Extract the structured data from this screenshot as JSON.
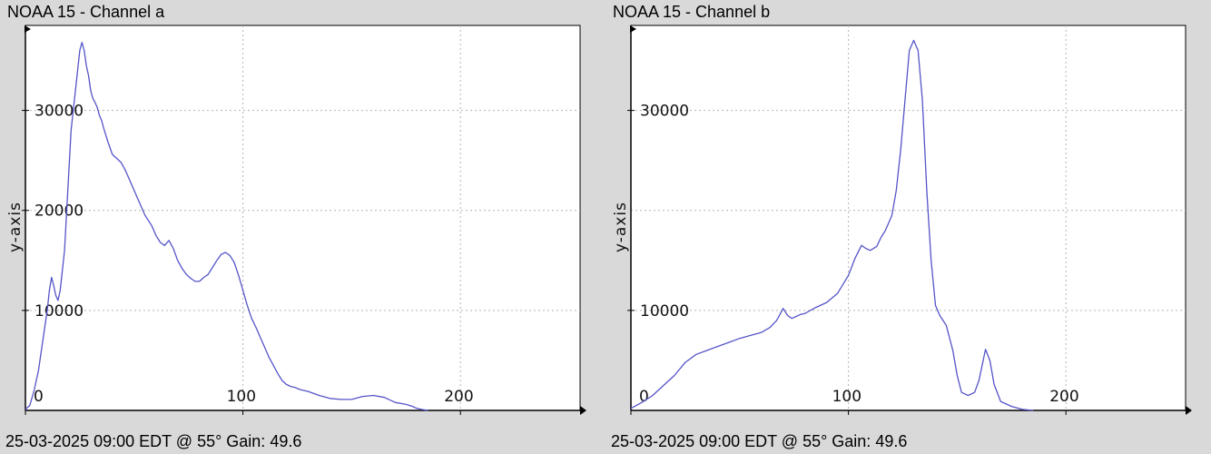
{
  "panels": [
    {
      "title": "NOAA 15 - Channel a",
      "footer": "25-03-2025 09:00 EDT @ 55° Gain: 49.6"
    },
    {
      "title": "NOAA 15 - Channel b",
      "footer": "25-03-2025 09:00 EDT @ 55° Gain: 49.6"
    }
  ],
  "colors": {
    "background": "#d9d9d9",
    "plot_background": "#ffffff",
    "line": "#5454c8",
    "grid": "#b4b4b4",
    "axis": "#000000"
  },
  "chart_data": [
    {
      "type": "line",
      "title": "NOAA 15 - Channel a",
      "xlabel": "",
      "ylabel": "y-axis",
      "xlim": [
        0,
        255
      ],
      "ylim": [
        0,
        38500
      ],
      "grid": true,
      "xticks": [
        0,
        100,
        200
      ],
      "yticks": [
        10000,
        20000,
        30000
      ],
      "series": [
        {
          "x": [
            0,
            2,
            4,
            6,
            8,
            10,
            11,
            12,
            13,
            14,
            15,
            16,
            17,
            18,
            19,
            20,
            21,
            22,
            23,
            24,
            25,
            26,
            27,
            28,
            29,
            30,
            31,
            32,
            33,
            34,
            35,
            36,
            38,
            40,
            42,
            44,
            46,
            48,
            50,
            52,
            55,
            58,
            60,
            62,
            64,
            66,
            68,
            70,
            72,
            74,
            76,
            78,
            80,
            82,
            84,
            86,
            88,
            90,
            92,
            94,
            96,
            98,
            100,
            102,
            104,
            106,
            108,
            110,
            112,
            114,
            116,
            118,
            120,
            122,
            124,
            126,
            130,
            135,
            140,
            145,
            150,
            155,
            160,
            165,
            170,
            175,
            178,
            180,
            182,
            185
          ],
          "y": [
            100,
            500,
            2000,
            4000,
            7000,
            10000,
            12000,
            13300,
            12500,
            11500,
            11000,
            12000,
            14000,
            16000,
            20000,
            24000,
            28000,
            30000,
            32000,
            34000,
            36000,
            36800,
            36000,
            34500,
            33500,
            32000,
            31200,
            30800,
            30300,
            29500,
            29000,
            28200,
            26800,
            25600,
            25200,
            24800,
            24000,
            23000,
            22000,
            21000,
            19500,
            18500,
            17500,
            16800,
            16500,
            17000,
            16200,
            15000,
            14200,
            13600,
            13200,
            12900,
            12900,
            13300,
            13600,
            14300,
            15000,
            15600,
            15800,
            15500,
            14800,
            13500,
            12000,
            10500,
            9200,
            8300,
            7300,
            6300,
            5300,
            4500,
            3700,
            3000,
            2600,
            2400,
            2300,
            2100,
            1900,
            1500,
            1200,
            1100,
            1100,
            1400,
            1500,
            1300,
            800,
            600,
            400,
            200,
            100,
            0
          ]
        }
      ]
    },
    {
      "type": "line",
      "title": "NOAA 15 - Channel b",
      "xlabel": "",
      "ylabel": "y-axis",
      "xlim": [
        0,
        255
      ],
      "ylim": [
        0,
        38500
      ],
      "grid": true,
      "xticks": [
        0,
        100,
        200
      ],
      "yticks": [
        10000,
        30000
      ],
      "extra_gridlines_y": [
        20000
      ],
      "series": [
        {
          "x": [
            0,
            5,
            10,
            15,
            20,
            25,
            30,
            35,
            40,
            45,
            50,
            55,
            60,
            64,
            67,
            70,
            72,
            74,
            76,
            78,
            80,
            85,
            90,
            95,
            100,
            103,
            106,
            108,
            110,
            113,
            115,
            117,
            120,
            122,
            124,
            126,
            128,
            130,
            132,
            134,
            136,
            138,
            140,
            142,
            145,
            148,
            150,
            152,
            155,
            158,
            160,
            163,
            165,
            167,
            170,
            175,
            180,
            185
          ],
          "y": [
            200,
            800,
            1500,
            2500,
            3500,
            4800,
            5600,
            6000,
            6400,
            6800,
            7200,
            7500,
            7800,
            8300,
            9000,
            10200,
            9500,
            9200,
            9400,
            9600,
            9700,
            10300,
            10800,
            11700,
            13500,
            15200,
            16500,
            16200,
            16000,
            16400,
            17300,
            18000,
            19500,
            22000,
            26000,
            31000,
            36000,
            37000,
            36000,
            31000,
            22000,
            15000,
            10500,
            9500,
            8500,
            6000,
            3500,
            1800,
            1500,
            1800,
            3000,
            6100,
            5000,
            2600,
            900,
            400,
            100,
            0
          ]
        }
      ]
    }
  ]
}
